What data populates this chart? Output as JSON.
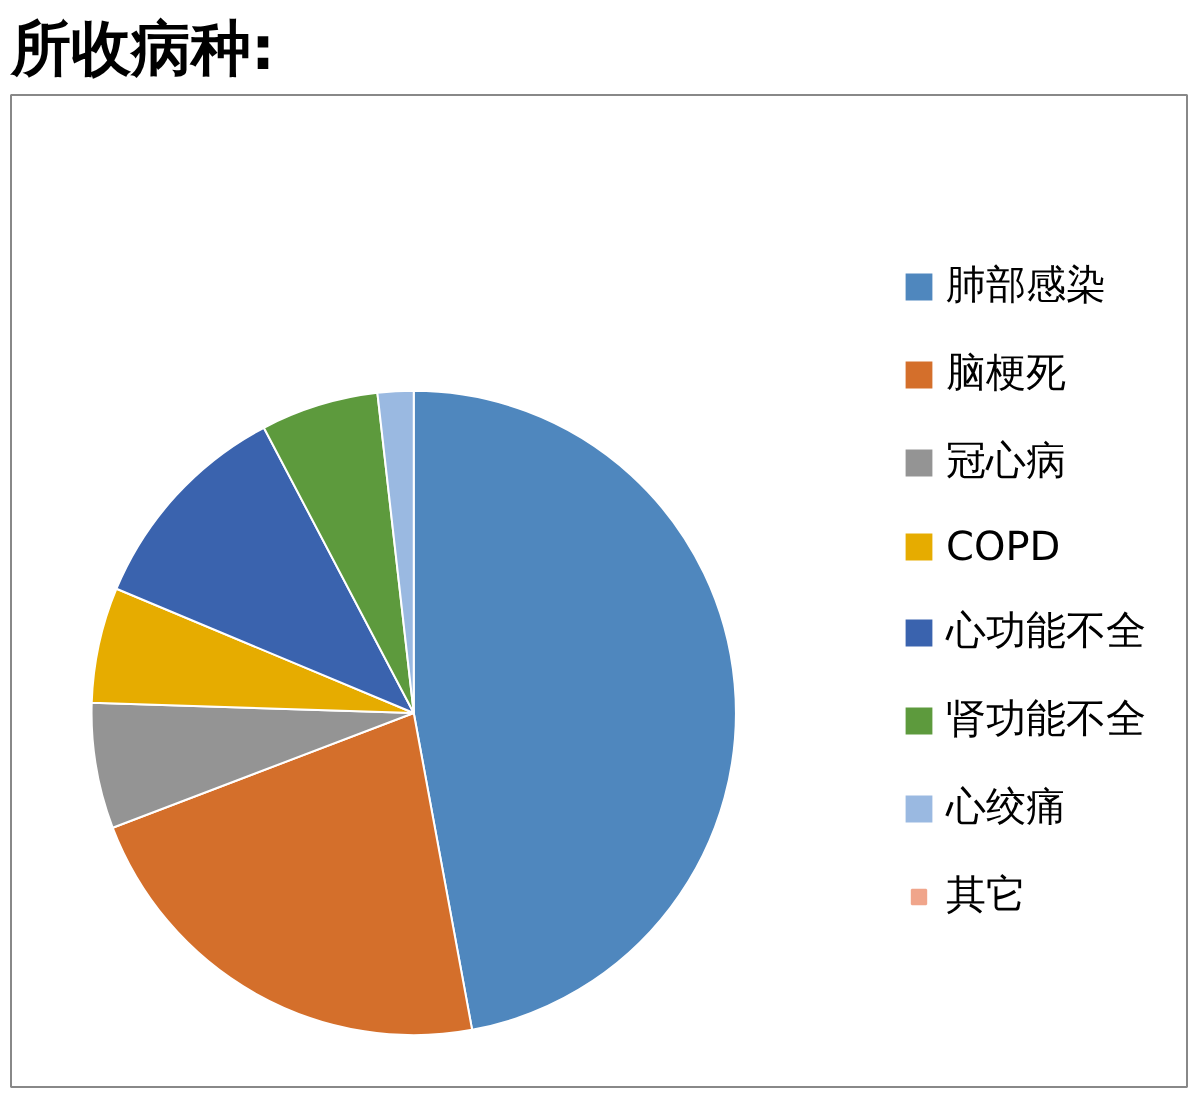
{
  "chart_data": {
    "type": "pie",
    "title": "所收病种:",
    "categories": [
      "肺部感染",
      "脑梗死",
      "冠心病",
      "COPD",
      "心功能不全",
      "肾功能不全",
      "心绞痛",
      "其它"
    ],
    "values": [
      47.1,
      22.1,
      6.3,
      5.8,
      11.0,
      5.9,
      1.8,
      0
    ],
    "colors": [
      "#4f87be",
      "#d46f2b",
      "#949494",
      "#e6ac00",
      "#3a63ae",
      "#5d9a3d",
      "#9ab9e1",
      "#f0a58b"
    ],
    "legend": "right"
  }
}
